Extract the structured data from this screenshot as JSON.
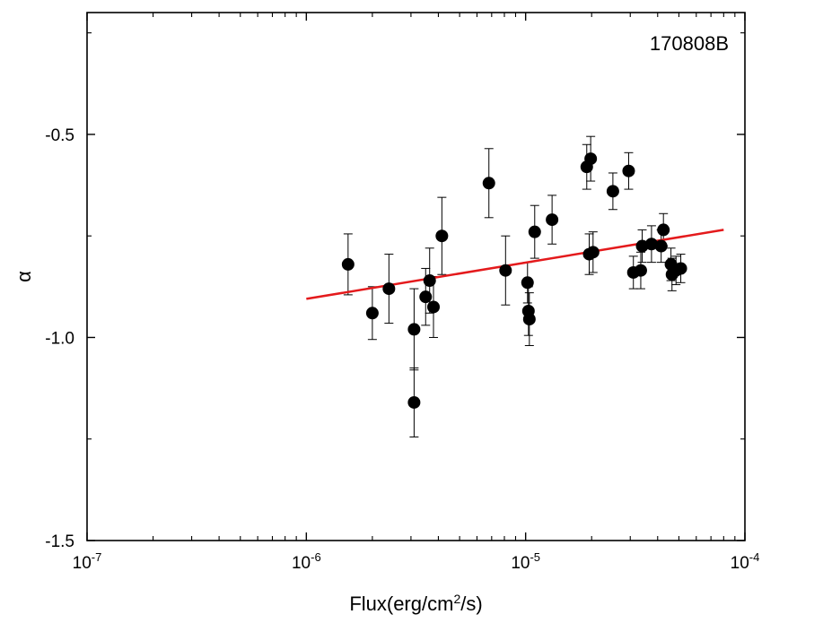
{
  "chart_data": {
    "type": "scatter",
    "title": "",
    "annotation": "170808B",
    "xlabel": {
      "main": "Flux(erg/cm",
      "sup": "2",
      "tail": "/s)"
    },
    "ylabel": "α",
    "xscale": "log",
    "xlim": [
      1e-07,
      0.0001
    ],
    "ylim": [
      -1.5,
      -0.2
    ],
    "xticks": [
      {
        "value": 1e-07,
        "base": "10",
        "exp": "-7"
      },
      {
        "value": 1e-06,
        "base": "10",
        "exp": "-6"
      },
      {
        "value": 1e-05,
        "base": "10",
        "exp": "-5"
      },
      {
        "value": 0.0001,
        "base": "10",
        "exp": "-4"
      }
    ],
    "yticks": [
      {
        "value": -1.5,
        "label": "-1.5"
      },
      {
        "value": -1.0,
        "label": "-1.0"
      },
      {
        "value": -0.5,
        "label": "-0.5"
      }
    ],
    "grid": false,
    "colors": {
      "points": "#000000",
      "fit": "#e41a1c"
    },
    "points": [
      {
        "x": 1.55e-06,
        "y": -0.82,
        "err": 0.075
      },
      {
        "x": 2e-06,
        "y": -0.94,
        "err": 0.065
      },
      {
        "x": 2.38e-06,
        "y": -0.88,
        "err": 0.085
      },
      {
        "x": 3.1e-06,
        "y": -0.98,
        "err": 0.1
      },
      {
        "x": 3.1e-06,
        "y": -1.16,
        "err": 0.085
      },
      {
        "x": 3.5e-06,
        "y": -0.9,
        "err": 0.07
      },
      {
        "x": 3.65e-06,
        "y": -0.86,
        "err": 0.08
      },
      {
        "x": 3.8e-06,
        "y": -0.925,
        "err": 0.075
      },
      {
        "x": 4.15e-06,
        "y": -0.75,
        "err": 0.095
      },
      {
        "x": 6.8e-06,
        "y": -0.62,
        "err": 0.085
      },
      {
        "x": 8.1e-06,
        "y": -0.835,
        "err": 0.085
      },
      {
        "x": 1.02e-05,
        "y": -0.865,
        "err": 0.05
      },
      {
        "x": 1.03e-05,
        "y": -0.935,
        "err": 0.06
      },
      {
        "x": 1.04e-05,
        "y": -0.955,
        "err": 0.065
      },
      {
        "x": 1.1e-05,
        "y": -0.74,
        "err": 0.065
      },
      {
        "x": 1.32e-05,
        "y": -0.71,
        "err": 0.06
      },
      {
        "x": 1.9e-05,
        "y": -0.58,
        "err": 0.055
      },
      {
        "x": 1.98e-05,
        "y": -0.56,
        "err": 0.055
      },
      {
        "x": 1.95e-05,
        "y": -0.795,
        "err": 0.05
      },
      {
        "x": 2.03e-05,
        "y": -0.79,
        "err": 0.05
      },
      {
        "x": 2.5e-05,
        "y": -0.64,
        "err": 0.045
      },
      {
        "x": 2.95e-05,
        "y": -0.59,
        "err": 0.045
      },
      {
        "x": 3.1e-05,
        "y": -0.84,
        "err": 0.04
      },
      {
        "x": 3.35e-05,
        "y": -0.835,
        "err": 0.045
      },
      {
        "x": 3.4e-05,
        "y": -0.775,
        "err": 0.04
      },
      {
        "x": 3.75e-05,
        "y": -0.77,
        "err": 0.045
      },
      {
        "x": 4.15e-05,
        "y": -0.775,
        "err": 0.04
      },
      {
        "x": 4.25e-05,
        "y": -0.735,
        "err": 0.04
      },
      {
        "x": 4.6e-05,
        "y": -0.82,
        "err": 0.04
      },
      {
        "x": 4.65e-05,
        "y": -0.845,
        "err": 0.04
      },
      {
        "x": 4.85e-05,
        "y": -0.835,
        "err": 0.035
      },
      {
        "x": 5.1e-05,
        "y": -0.83,
        "err": 0.035
      }
    ],
    "fit": {
      "x": [
        1e-06,
        8e-05
      ],
      "y": [
        -0.905,
        -0.735
      ]
    }
  }
}
